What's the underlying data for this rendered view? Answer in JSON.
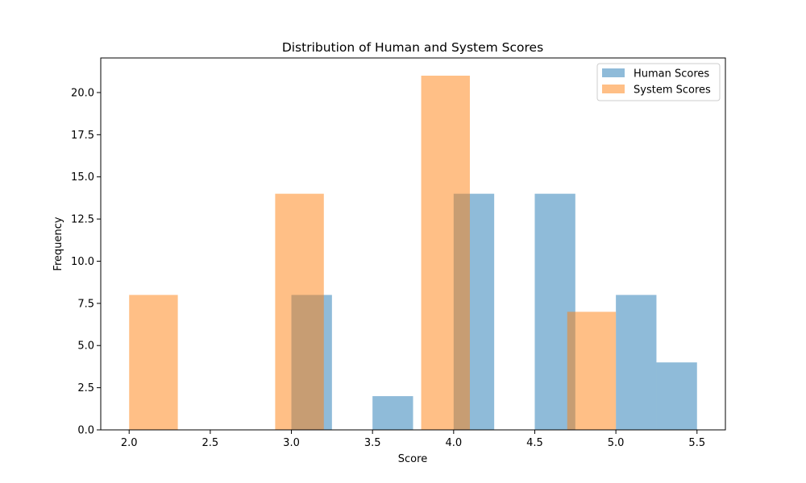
{
  "chart_data": {
    "type": "bar",
    "title": "Distribution of Human and System Scores",
    "xlabel": "Score",
    "ylabel": "Frequency",
    "xlim": [
      1.825,
      5.675
    ],
    "ylim": [
      0,
      22.05
    ],
    "xticks": [
      2.0,
      2.5,
      3.0,
      3.5,
      4.0,
      4.5,
      5.0,
      5.5
    ],
    "xtick_labels": [
      "2.0",
      "2.5",
      "3.0",
      "3.5",
      "4.0",
      "4.5",
      "5.0",
      "5.5"
    ],
    "yticks": [
      0,
      2.5,
      5,
      7.5,
      10,
      12.5,
      15,
      17.5,
      20
    ],
    "ytick_labels": [
      "0.0",
      "2.5",
      "5.0",
      "7.5",
      "10.0",
      "12.5",
      "15.0",
      "17.5",
      "20.0"
    ],
    "legend_position": "upper right",
    "series": [
      {
        "name": "Human Scores",
        "color": "#1f77b4",
        "alpha": 0.5,
        "bins": [
          {
            "x0": 3.0,
            "x1": 3.25,
            "count": 8
          },
          {
            "x0": 3.25,
            "x1": 3.5,
            "count": 0
          },
          {
            "x0": 3.5,
            "x1": 3.75,
            "count": 2
          },
          {
            "x0": 3.75,
            "x1": 4.0,
            "count": 0
          },
          {
            "x0": 4.0,
            "x1": 4.25,
            "count": 14
          },
          {
            "x0": 4.25,
            "x1": 4.5,
            "count": 0
          },
          {
            "x0": 4.5,
            "x1": 4.75,
            "count": 14
          },
          {
            "x0": 4.75,
            "x1": 5.0,
            "count": 0
          },
          {
            "x0": 5.0,
            "x1": 5.25,
            "count": 8
          },
          {
            "x0": 5.25,
            "x1": 5.5,
            "count": 4
          }
        ]
      },
      {
        "name": "System Scores",
        "color": "#ff7f0e",
        "alpha": 0.5,
        "bins": [
          {
            "x0": 2.0,
            "x1": 2.3,
            "count": 8
          },
          {
            "x0": 2.3,
            "x1": 2.6,
            "count": 0
          },
          {
            "x0": 2.6,
            "x1": 2.9,
            "count": 0
          },
          {
            "x0": 2.9,
            "x1": 3.2,
            "count": 14
          },
          {
            "x0": 3.2,
            "x1": 3.5,
            "count": 0
          },
          {
            "x0": 3.5,
            "x1": 3.8,
            "count": 0
          },
          {
            "x0": 3.8,
            "x1": 4.1,
            "count": 21
          },
          {
            "x0": 4.1,
            "x1": 4.4,
            "count": 0
          },
          {
            "x0": 4.4,
            "x1": 4.7,
            "count": 0
          },
          {
            "x0": 4.7,
            "x1": 5.0,
            "count": 7
          }
        ]
      }
    ]
  }
}
